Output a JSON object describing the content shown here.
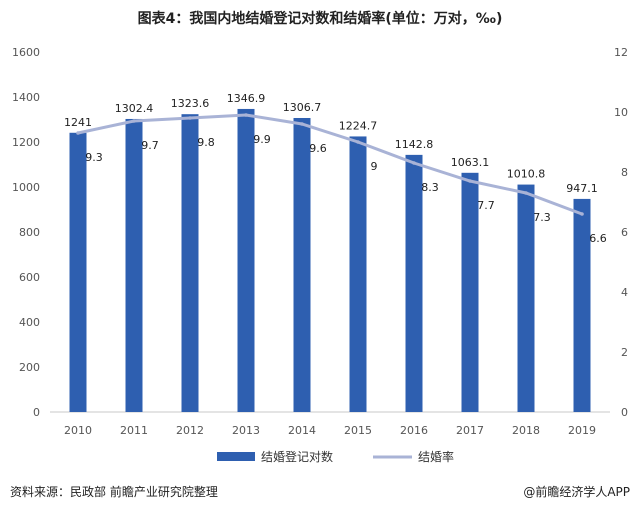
{
  "title": "图表4：我国内地结婚登记对数和结婚率(单位：万对，‰)",
  "source": "资料来源：民政部 前瞻产业研究院整理",
  "app_mark": "@前瞻经济学人APP",
  "chart_data": {
    "type": "bar",
    "categories": [
      "2010",
      "2011",
      "2012",
      "2013",
      "2014",
      "2015",
      "2016",
      "2017",
      "2018",
      "2019"
    ],
    "series": [
      {
        "name": "结婚登记对数",
        "type": "bar",
        "axis": "left",
        "color": "#2e5fb0",
        "values": [
          1241,
          1302.4,
          1323.6,
          1346.9,
          1306.7,
          1224.7,
          1142.8,
          1063.1,
          1010.8,
          947.1
        ],
        "labels": [
          "1241",
          "1302.4",
          "1323.6",
          "1346.9",
          "1306.7",
          "1224.7",
          "1142.8",
          "1063.1",
          "1010.8",
          "947.1"
        ]
      },
      {
        "name": "结婚率",
        "type": "line",
        "axis": "right",
        "color": "#a9b3d6",
        "values": [
          9.3,
          9.7,
          9.8,
          9.9,
          9.6,
          9,
          8.3,
          7.7,
          7.3,
          6.6
        ],
        "labels": [
          "9.3",
          "9.7",
          "9.8",
          "9.9",
          "9.6",
          "9",
          "8.3",
          "7.7",
          "7.3",
          "6.6"
        ]
      }
    ],
    "y_left": {
      "min": 0,
      "max": 1600,
      "ticks": [
        "0",
        "200",
        "400",
        "600",
        "800",
        "1000",
        "1200",
        "1400",
        "1600"
      ]
    },
    "y_right": {
      "min": 0,
      "max": 12,
      "ticks": [
        "0",
        "2",
        "4",
        "6",
        "8",
        "10",
        "12"
      ]
    },
    "grid": false,
    "legend_position": "bottom"
  }
}
